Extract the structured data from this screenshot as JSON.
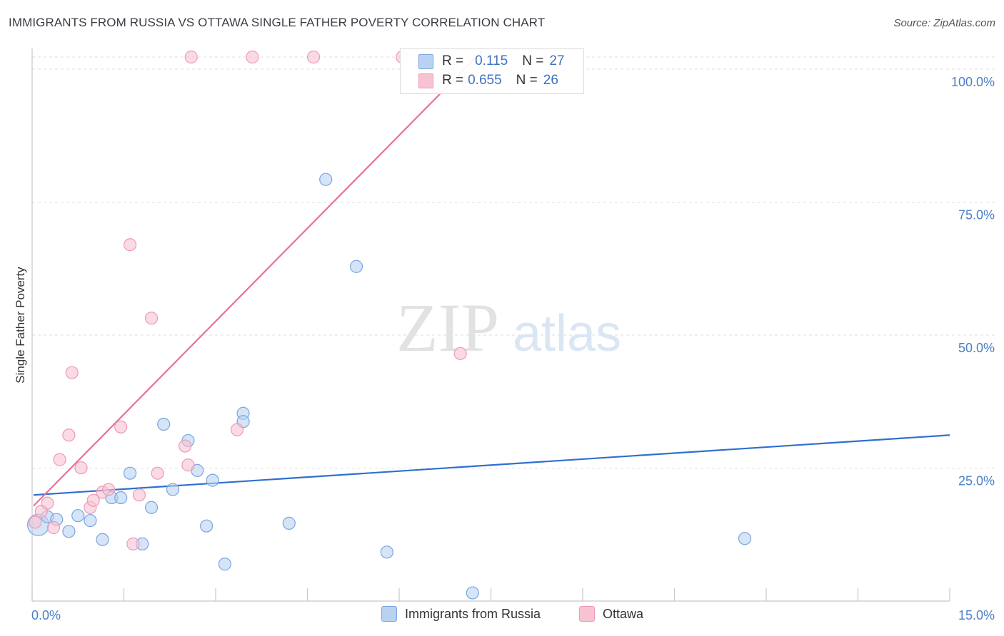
{
  "title": "IMMIGRANTS FROM RUSSIA VS OTTAWA SINGLE FATHER POVERTY CORRELATION CHART",
  "source": "Source: ZipAtlas.com",
  "watermark": {
    "zip": "ZIP",
    "atlas": "atlas"
  },
  "colors": {
    "blue_fill": "#b9d2f2",
    "blue_stroke": "#7aa6df",
    "blue_line": "#2f6fcf",
    "pink_fill": "#f7c3d3",
    "pink_stroke": "#ee9ab4",
    "pink_line": "#e8709b",
    "tick_text": "#4a7fc9"
  },
  "legend": {
    "rows": [
      {
        "r_label": "R =",
        "r_value": "0.115",
        "n_label": "N =",
        "n_value": "27"
      },
      {
        "r_label": "R =",
        "r_value": "0.655",
        "n_label": "N =",
        "n_value": "26"
      }
    ]
  },
  "chart_data": {
    "type": "scatter",
    "title": "IMMIGRANTS FROM RUSSIA VS OTTAWA SINGLE FATHER POVERTY CORRELATION CHART",
    "ylabel": "Single Father Poverty",
    "xlim": [
      0,
      15
    ],
    "ylim": [
      0,
      100
    ],
    "x_tick_labels": [
      "0.0%",
      "15.0%"
    ],
    "y_ticks": [
      25,
      50,
      75,
      100
    ],
    "y_tick_labels": [
      "25.0%",
      "50.0%",
      "75.0%",
      "100.0%"
    ],
    "grid": true,
    "legend_placement": "top-center",
    "series": [
      {
        "name": "Immigrants from Russia",
        "color": "#7aa6df",
        "points": [
          [
            0.1,
            14.0,
            1
          ],
          [
            0.25,
            15.5,
            0
          ],
          [
            0.4,
            15.0,
            0
          ],
          [
            0.6,
            12.8,
            0
          ],
          [
            0.75,
            15.7,
            0
          ],
          [
            0.95,
            14.8,
            0
          ],
          [
            1.15,
            11.3,
            0
          ],
          [
            1.3,
            19.0,
            0
          ],
          [
            1.45,
            19.0,
            0
          ],
          [
            1.6,
            23.5,
            0
          ],
          [
            1.8,
            10.5,
            0
          ],
          [
            1.95,
            17.2,
            0
          ],
          [
            2.15,
            32.5,
            0
          ],
          [
            2.3,
            20.5,
            0
          ],
          [
            2.55,
            29.5,
            0
          ],
          [
            2.7,
            24.0,
            0
          ],
          [
            2.85,
            13.8,
            0
          ],
          [
            2.95,
            22.2,
            0
          ],
          [
            3.15,
            6.8,
            0
          ],
          [
            3.45,
            34.5,
            0
          ],
          [
            3.45,
            33.0,
            0
          ],
          [
            4.2,
            14.3,
            0
          ],
          [
            4.8,
            77.5,
            0
          ],
          [
            5.3,
            61.5,
            0
          ],
          [
            5.8,
            9.0,
            0
          ],
          [
            7.2,
            1.5,
            0
          ],
          [
            11.65,
            11.5,
            0
          ]
        ],
        "trend": {
          "x": [
            0,
            15
          ],
          "y": [
            19.5,
            30.5
          ]
        }
      },
      {
        "name": "Ottawa",
        "color": "#ee9ab4",
        "points": [
          [
            0.05,
            14.5,
            0
          ],
          [
            0.15,
            16.5,
            0
          ],
          [
            0.25,
            18.0,
            0
          ],
          [
            0.35,
            13.5,
            0
          ],
          [
            0.45,
            26.0,
            0
          ],
          [
            0.6,
            30.5,
            0
          ],
          [
            0.65,
            42.0,
            0
          ],
          [
            0.8,
            24.5,
            0
          ],
          [
            0.95,
            17.2,
            0
          ],
          [
            1.0,
            18.5,
            0
          ],
          [
            1.15,
            20.0,
            0
          ],
          [
            1.25,
            20.5,
            0
          ],
          [
            1.45,
            32.0,
            0
          ],
          [
            1.6,
            65.5,
            0
          ],
          [
            1.65,
            10.5,
            0
          ],
          [
            1.75,
            19.5,
            0
          ],
          [
            1.95,
            52.0,
            0
          ],
          [
            2.05,
            23.5,
            0
          ],
          [
            2.5,
            28.5,
            0
          ],
          [
            2.55,
            25.0,
            0
          ],
          [
            2.6,
            100.0,
            0
          ],
          [
            3.35,
            31.5,
            0
          ],
          [
            3.6,
            100.0,
            0
          ],
          [
            4.6,
            100.0,
            0
          ],
          [
            6.05,
            100.0,
            0
          ],
          [
            7.0,
            45.5,
            0
          ]
        ],
        "trend": {
          "x": [
            0,
            7.35
          ],
          "y": [
            17.5,
            101.0
          ]
        }
      }
    ]
  }
}
